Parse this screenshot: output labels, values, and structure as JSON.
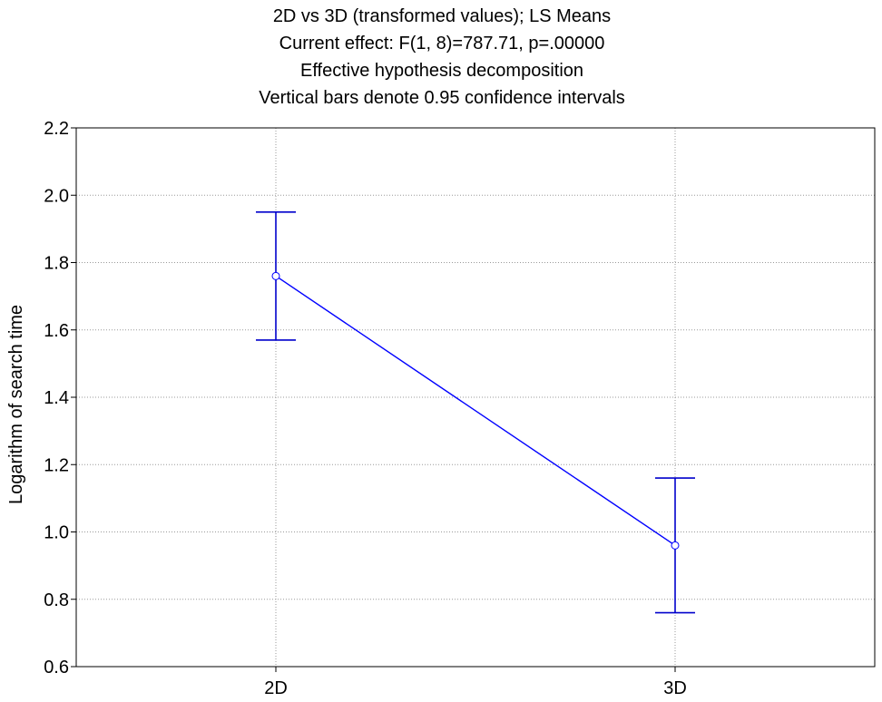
{
  "chart_data": {
    "type": "line",
    "title_lines": [
      "2D vs 3D (transformed values); LS Means",
      "Current effect: F(1, 8)=787.71, p=.00000",
      "Effective hypothesis decomposition",
      "Vertical bars denote 0.95 confidence intervals"
    ],
    "xlabel": "",
    "ylabel": "Logarithm of search time",
    "categories": [
      "2D",
      "3D"
    ],
    "ylim": [
      0.6,
      2.2
    ],
    "yticks": [
      "0.6",
      "0.8",
      "1.0",
      "1.2",
      "1.4",
      "1.6",
      "1.8",
      "2.0",
      "2.2"
    ],
    "grid": true,
    "series": [
      {
        "values": [
          1.76,
          0.96
        ],
        "ci_lower": [
          1.57,
          0.76
        ],
        "ci_upper": [
          1.95,
          1.16
        ],
        "color": "#0000ff"
      }
    ]
  }
}
